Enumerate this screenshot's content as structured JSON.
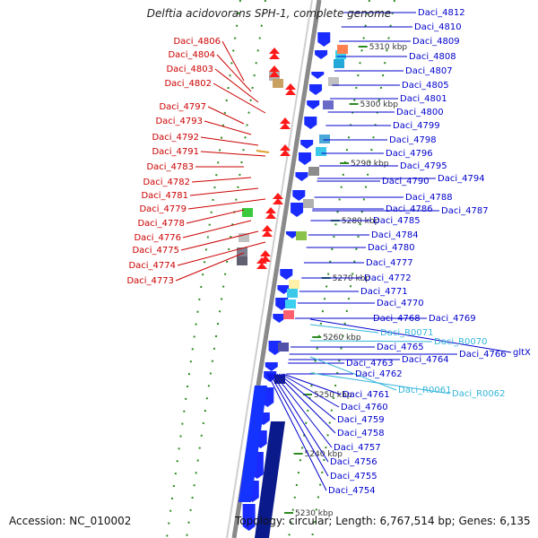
{
  "title": "Delftia acidovorans SPH-1, complete genome",
  "footer": {
    "accession": "Accession: NC_010002",
    "topology": "Topology: circular; Length: 6,767,514 bp; Genes: 6,135"
  },
  "colors": {
    "forward_label": "#0000cc",
    "reverse_label": "#cc0000",
    "rna_label": "#33b5d9",
    "forward_feature": "#1a2bff",
    "reverse_feature": "#ff1a1a",
    "backbone": "#8a8a8a",
    "tick": "#2e8b22"
  },
  "scale_ticks": [
    "5310 kbp",
    "5300 kbp",
    "5290 kbp",
    "5280 kbp",
    "5270 kbp",
    "5260 kbp",
    "5250 kbp",
    "5240 kbp",
    "5230 kbp"
  ],
  "reverse_labels": [
    "Daci_4806",
    "Daci_4804",
    "Daci_4803",
    "Daci_4802",
    "Daci_4797",
    "Daci_4793",
    "Daci_4792",
    "Daci_4791",
    "Daci_4783",
    "Daci_4782",
    "Daci_4781",
    "Daci_4779",
    "Daci_4778",
    "Daci_4776",
    "Daci_4775",
    "Daci_4774",
    "Daci_4773"
  ],
  "forward_labels": [
    "Daci_4812",
    "Daci_4810",
    "Daci_4809",
    "Daci_4808",
    "Daci_4807",
    "Daci_4805",
    "Daci_4801",
    "Daci_4800",
    "Daci_4799",
    "Daci_4798",
    "Daci_4796",
    "Daci_4795",
    "Daci_4794",
    "Daci_4790",
    "Daci_4788",
    "Daci_4787",
    "Daci_4786",
    "Daci_4785",
    "Daci_4784",
    "Daci_4780",
    "Daci_4777",
    "Daci_4772",
    "Daci_4771",
    "Daci_4770",
    "Daci_4769",
    "Daci_4768",
    "Daci_4766",
    "Daci_4765",
    "Daci_4764",
    "Daci_4763",
    "Daci_4762",
    "Daci_4761",
    "Daci_4760",
    "Daci_4759",
    "Daci_4758",
    "Daci_4757",
    "Daci_4756",
    "Daci_4755",
    "Daci_4754"
  ],
  "rna_labels": [
    "Daci_R0071",
    "Daci_R0070",
    "Daci_R0061",
    "Daci_R0062"
  ],
  "other_labels": [
    "gltX"
  ]
}
